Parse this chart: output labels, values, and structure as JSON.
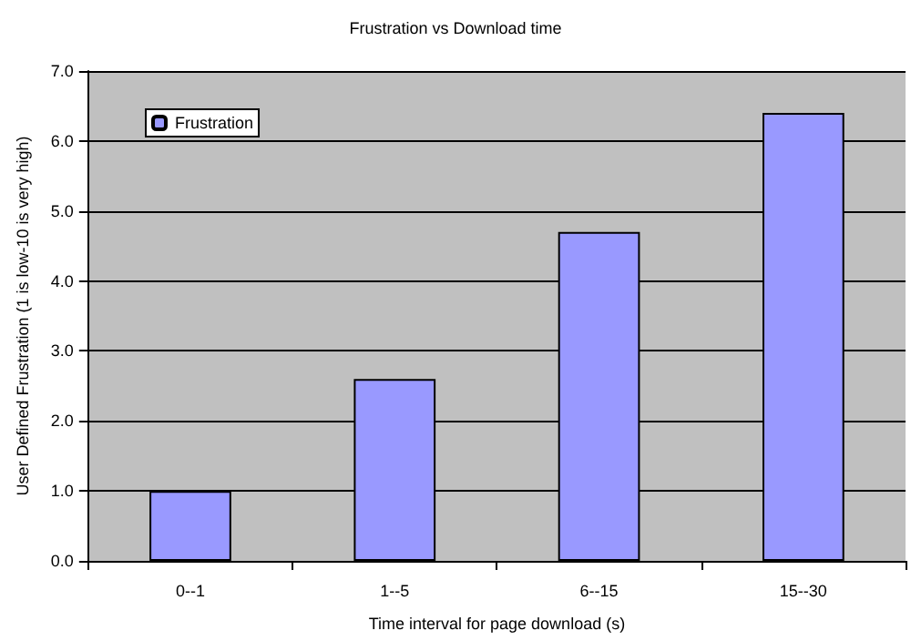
{
  "chart_data": {
    "type": "bar",
    "title": "Frustration vs Download time",
    "xlabel": "Time interval for page download (s)",
    "ylabel": "User Defined Frustration (1 is low-10 is very high)",
    "categories": [
      "0--1",
      "1--5",
      "6--15",
      "15--30"
    ],
    "series": [
      {
        "name": "Frustration",
        "color": "#9999ff",
        "values": [
          1.0,
          2.6,
          4.7,
          6.4
        ]
      }
    ],
    "ylim": [
      0,
      7
    ],
    "yticks": [
      {
        "value": 0,
        "label": "0.0"
      },
      {
        "value": 1,
        "label": "1.0"
      },
      {
        "value": 2,
        "label": "2.0"
      },
      {
        "value": 3,
        "label": "3.0"
      },
      {
        "value": 4,
        "label": "4.0"
      },
      {
        "value": 5,
        "label": "5.0"
      },
      {
        "value": 6,
        "label": "6.0"
      },
      {
        "value": 7,
        "label": "7.0"
      }
    ],
    "grid": "y",
    "legend": "top left"
  }
}
